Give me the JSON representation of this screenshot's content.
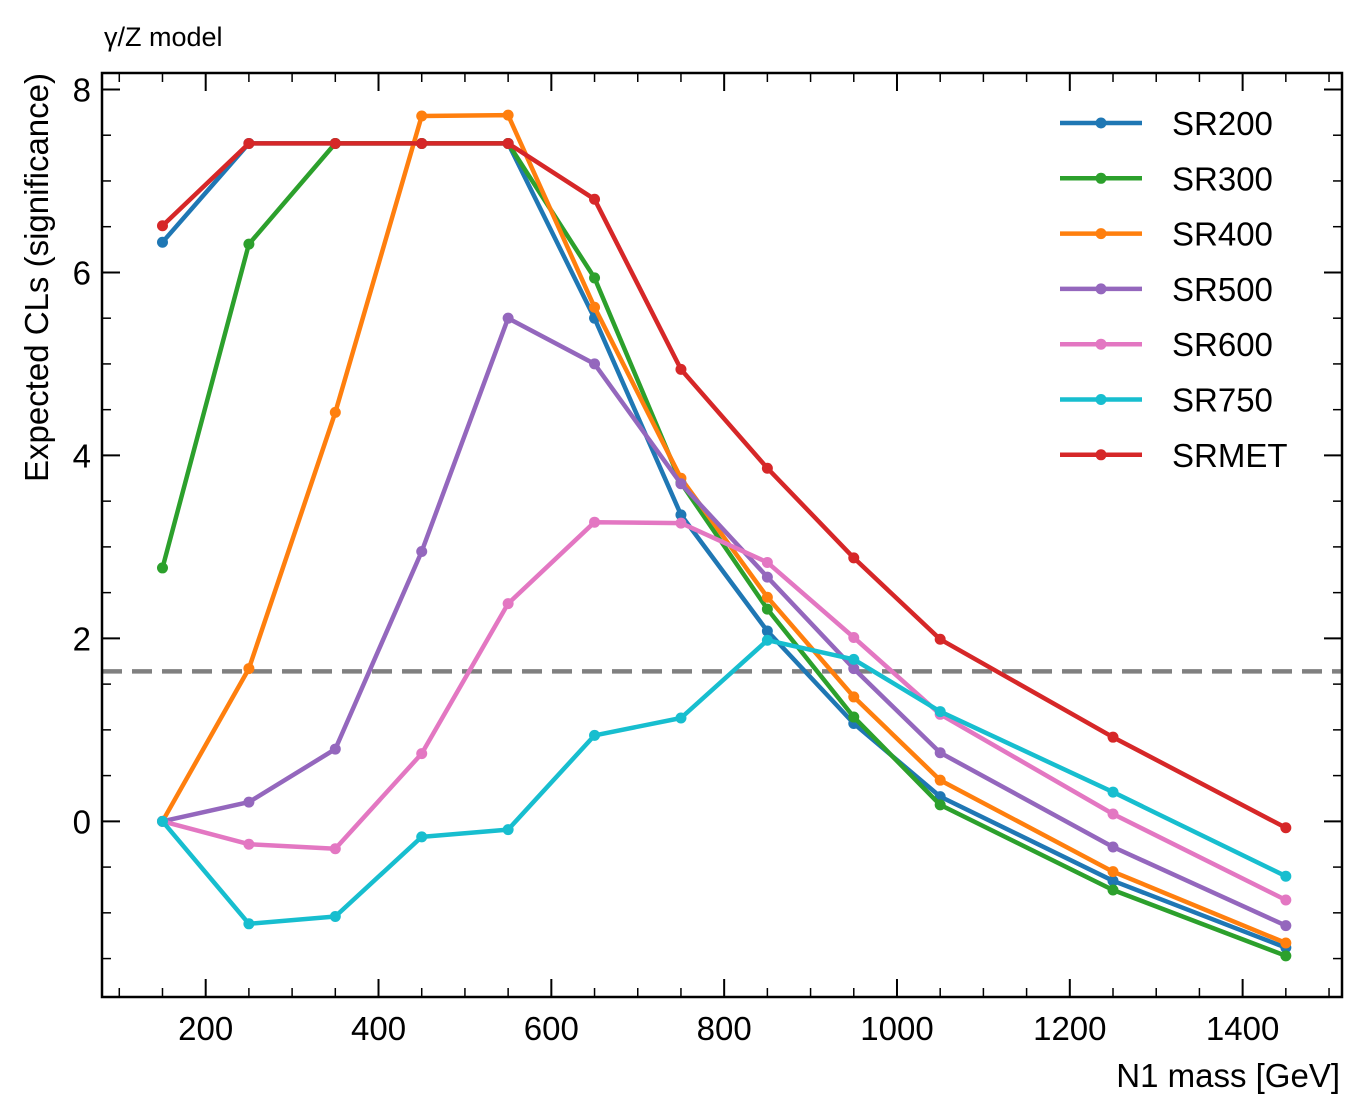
{
  "chart_data": {
    "type": "line",
    "title_left": "γ/Z model",
    "xlabel": "N1 mass [GeV]",
    "ylabel": "Expected CLs (significance)",
    "xlim": [
      80,
      1515
    ],
    "ylim": [
      -1.92,
      8.18
    ],
    "x_major_ticks": [
      200,
      400,
      600,
      800,
      1000,
      1200,
      1400
    ],
    "x_tick_labels": [
      "200",
      "400",
      "600",
      "800",
      "1000",
      "1200",
      "1400"
    ],
    "y_major_ticks": [
      0,
      2,
      4,
      6,
      8
    ],
    "y_tick_labels": [
      "0",
      "2",
      "4",
      "6",
      "8"
    ],
    "reference_line": {
      "y": 1.64,
      "style": "dashed",
      "color": "#808080"
    },
    "legend_position": "top-right",
    "x": [
      150,
      250,
      350,
      450,
      550,
      650,
      750,
      850,
      950,
      1050,
      1250,
      1450
    ],
    "series": [
      {
        "name": "SR200",
        "color": "#1f77b4",
        "values": [
          6.33,
          7.41,
          7.41,
          7.41,
          7.41,
          5.5,
          3.35,
          2.08,
          1.07,
          0.27,
          -0.65,
          -1.38
        ]
      },
      {
        "name": "SR300",
        "color": "#2ca02c",
        "values": [
          2.77,
          6.31,
          7.41,
          7.41,
          7.41,
          5.94,
          3.7,
          2.32,
          1.14,
          0.18,
          -0.75,
          -1.47
        ]
      },
      {
        "name": "SR400",
        "color": "#ff7f0e",
        "values": [
          0.0,
          1.67,
          4.47,
          7.71,
          7.72,
          5.62,
          3.75,
          2.45,
          1.36,
          0.45,
          -0.55,
          -1.33
        ]
      },
      {
        "name": "SR500",
        "color": "#9467bd",
        "values": [
          0.0,
          0.21,
          0.79,
          2.95,
          5.5,
          5.0,
          3.69,
          2.67,
          1.67,
          0.75,
          -0.28,
          -1.14
        ]
      },
      {
        "name": "SR600",
        "color": "#e377c2",
        "values": [
          0.0,
          -0.25,
          -0.3,
          0.74,
          2.38,
          3.27,
          3.26,
          2.83,
          2.01,
          1.17,
          0.08,
          -0.86
        ]
      },
      {
        "name": "SR750",
        "color": "#17becf",
        "values": [
          0.0,
          -1.12,
          -1.04,
          -0.17,
          -0.09,
          0.94,
          1.13,
          1.98,
          1.77,
          1.2,
          0.32,
          -0.6
        ]
      },
      {
        "name": "SRMET",
        "color": "#d62728",
        "values": [
          6.51,
          7.41,
          7.41,
          7.41,
          7.41,
          6.8,
          4.94,
          3.86,
          2.88,
          1.99,
          0.92,
          -0.07
        ]
      }
    ]
  }
}
